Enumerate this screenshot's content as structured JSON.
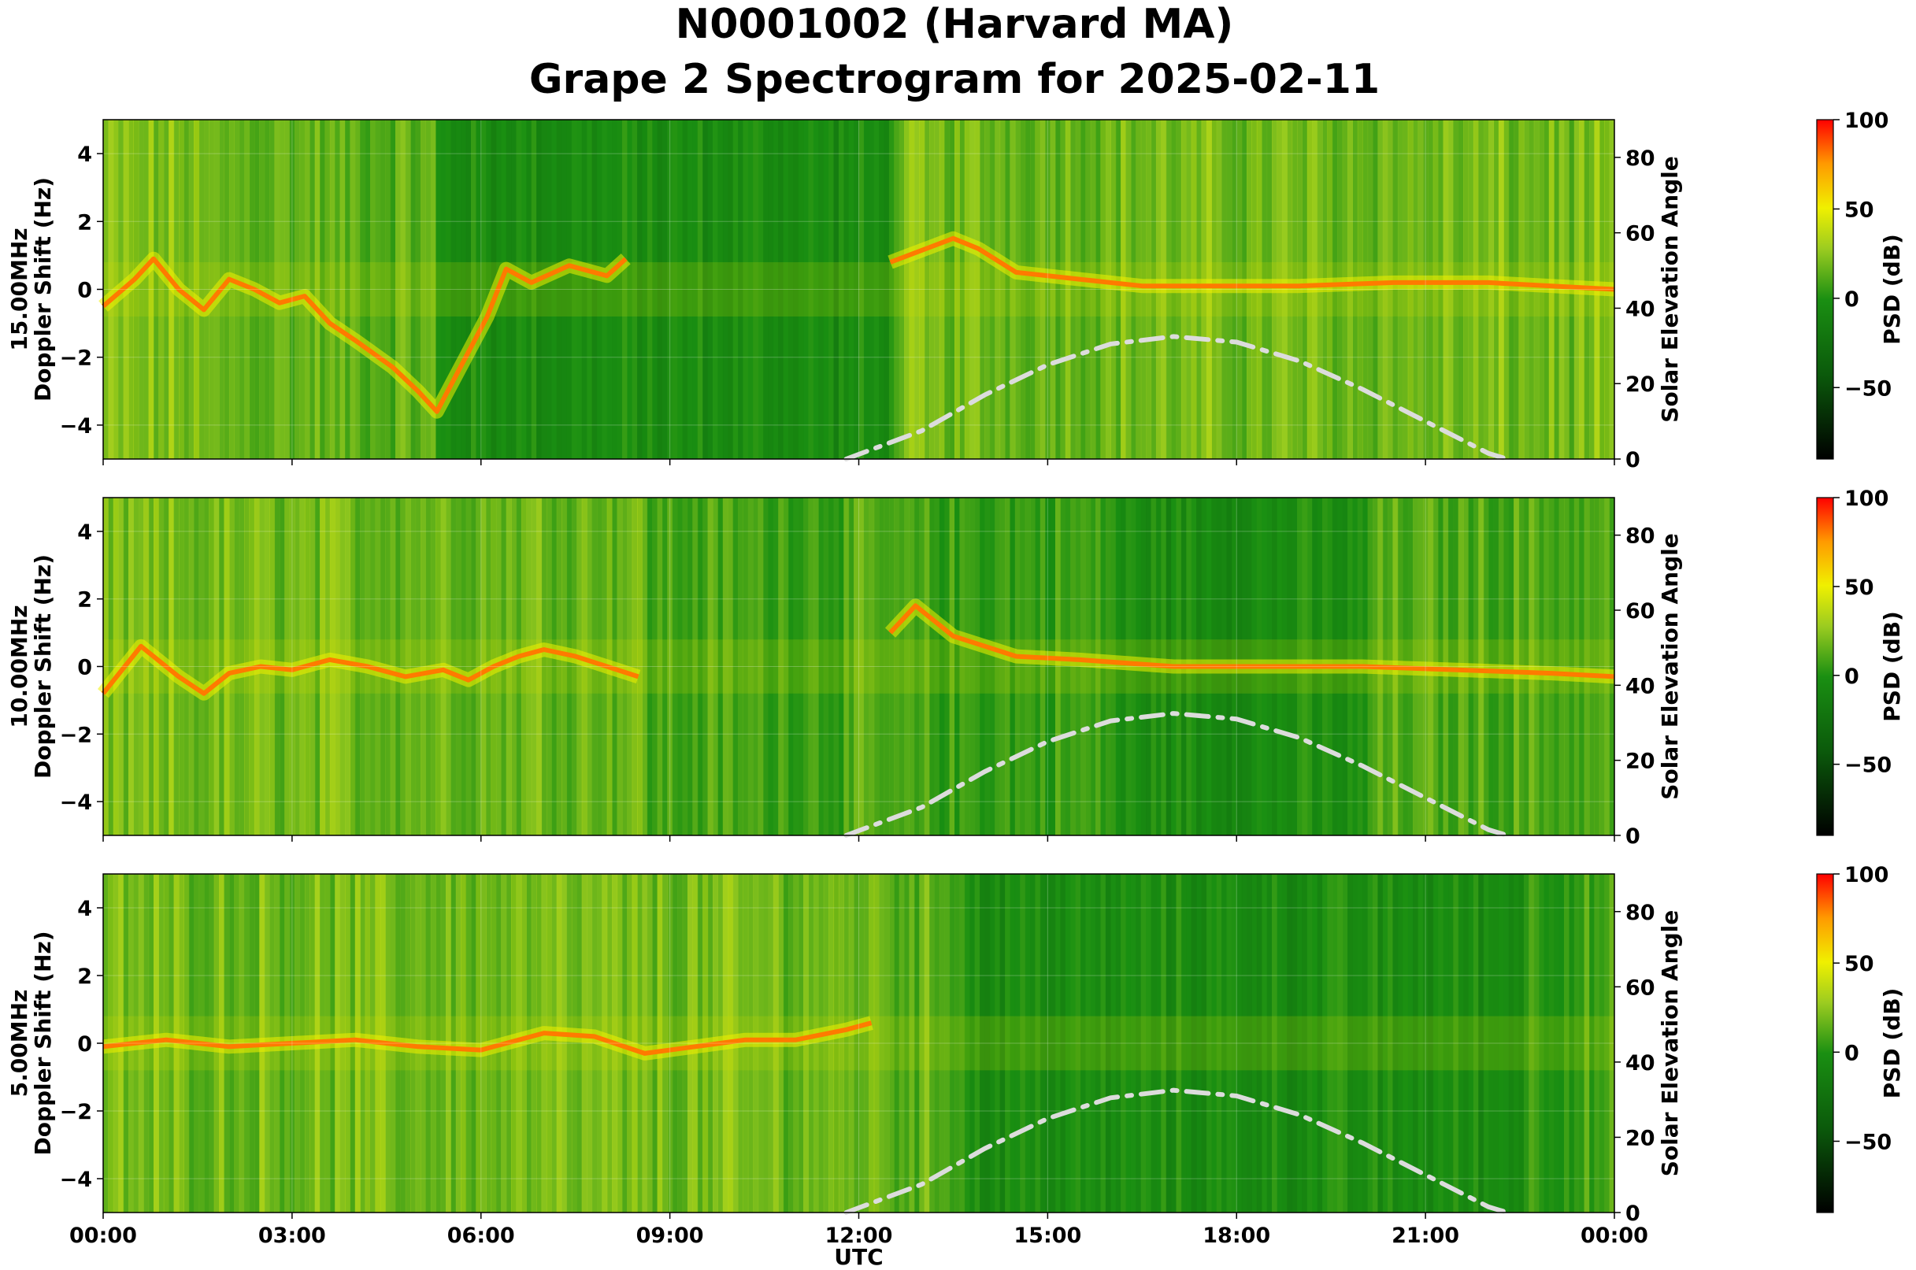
{
  "title_line1": "N0001002 (Harvard MA)",
  "title_line2": "Grape 2 Spectrogram for 2025-02-11",
  "chart_data": [
    {
      "type": "heatmap",
      "panel_label": "15.00MHz",
      "ylabel": "Doppler Shift (Hz)",
      "ylim": [
        -5,
        5
      ],
      "yticks": [
        -4,
        -2,
        0,
        2,
        4
      ],
      "y2label": "Solar Elevation Angle",
      "y2lim": [
        0,
        90
      ],
      "y2ticks": [
        0,
        20,
        40,
        60,
        80
      ],
      "xlim_hours": [
        0,
        24
      ],
      "colorbar": {
        "label": "PSD (dB)",
        "range": [
          -90,
          100
        ],
        "ticks": [
          100,
          50,
          0,
          -50
        ]
      },
      "doppler_trace": [
        [
          0,
          -0.5
        ],
        [
          0.5,
          0.3
        ],
        [
          0.8,
          0.9
        ],
        [
          1.2,
          0.0
        ],
        [
          1.6,
          -0.6
        ],
        [
          2.0,
          0.3
        ],
        [
          2.4,
          0.0
        ],
        [
          2.8,
          -0.4
        ],
        [
          3.2,
          -0.2
        ],
        [
          3.6,
          -1.0
        ],
        [
          4.0,
          -1.5
        ],
        [
          4.6,
          -2.3
        ],
        [
          5.0,
          -3.0
        ],
        [
          5.3,
          -3.6
        ],
        [
          5.7,
          -2.2
        ],
        [
          6.1,
          -0.8
        ],
        [
          6.4,
          0.6
        ],
        [
          6.8,
          0.2
        ],
        [
          7.4,
          0.7
        ],
        [
          8.0,
          0.4
        ],
        [
          8.3,
          0.9
        ]
      ],
      "noise_bands": [
        [
          0,
          1.5,
          0.6
        ],
        [
          1.5,
          3.5,
          0.5
        ],
        [
          3.5,
          5.2,
          0.45
        ],
        [
          5.2,
          12.5,
          0.1
        ],
        [
          12.5,
          24,
          0.55
        ]
      ],
      "day_trace": [
        [
          12.5,
          0.8
        ],
        [
          13.5,
          1.5
        ],
        [
          13.9,
          1.2
        ],
        [
          14.5,
          0.5
        ],
        [
          15.5,
          0.3
        ],
        [
          16.5,
          0.1
        ],
        [
          17.5,
          0.1
        ],
        [
          19,
          0.1
        ],
        [
          20.5,
          0.2
        ],
        [
          22,
          0.2
        ],
        [
          23,
          0.1
        ],
        [
          24,
          0.0
        ]
      ],
      "solar_elevation": [
        [
          11.8,
          0
        ],
        [
          13,
          7.5
        ],
        [
          14,
          17
        ],
        [
          15,
          25
        ],
        [
          16,
          30.5
        ],
        [
          17,
          32.5
        ],
        [
          18,
          31
        ],
        [
          19,
          26
        ],
        [
          20,
          18.5
        ],
        [
          21,
          10
        ],
        [
          22,
          1.5
        ],
        [
          22.3,
          0
        ]
      ]
    },
    {
      "type": "heatmap",
      "panel_label": "10.00MHz",
      "ylabel": "Doppler Shift (Hz)",
      "ylim": [
        -5,
        5
      ],
      "yticks": [
        -4,
        -2,
        0,
        2,
        4
      ],
      "y2label": "Solar Elevation Angle",
      "y2lim": [
        0,
        90
      ],
      "y2ticks": [
        0,
        20,
        40,
        60,
        80
      ],
      "xlim_hours": [
        0,
        24
      ],
      "colorbar": {
        "label": "PSD (dB)",
        "range": [
          -90,
          100
        ],
        "ticks": [
          100,
          50,
          0,
          -50
        ]
      },
      "doppler_trace": [
        [
          0,
          -0.8
        ],
        [
          0.6,
          0.6
        ],
        [
          1.2,
          -0.3
        ],
        [
          1.6,
          -0.8
        ],
        [
          2.0,
          -0.2
        ],
        [
          2.5,
          0.0
        ],
        [
          3.0,
          -0.1
        ],
        [
          3.6,
          0.2
        ],
        [
          4.2,
          0.0
        ],
        [
          4.8,
          -0.3
        ],
        [
          5.4,
          -0.1
        ],
        [
          5.8,
          -0.4
        ],
        [
          6.2,
          0.0
        ],
        [
          6.6,
          0.3
        ],
        [
          7.0,
          0.5
        ],
        [
          7.5,
          0.3
        ],
        [
          8.0,
          0.0
        ],
        [
          8.5,
          -0.3
        ]
      ],
      "noise_bands": [
        [
          0,
          8.6,
          0.55
        ],
        [
          8.6,
          12.5,
          0.35
        ],
        [
          12.5,
          16,
          0.3
        ],
        [
          16,
          20,
          0.1
        ],
        [
          20,
          24,
          0.4
        ]
      ],
      "day_trace": [
        [
          12.5,
          1.0
        ],
        [
          12.9,
          1.8
        ],
        [
          13.5,
          0.9
        ],
        [
          14.5,
          0.3
        ],
        [
          15.5,
          0.2
        ],
        [
          17,
          0.0
        ],
        [
          18.5,
          0.0
        ],
        [
          20,
          0.0
        ],
        [
          21.5,
          -0.1
        ],
        [
          23,
          -0.2
        ],
        [
          24,
          -0.3
        ]
      ],
      "solar_elevation": [
        [
          11.8,
          0
        ],
        [
          13,
          7.5
        ],
        [
          14,
          17
        ],
        [
          15,
          25
        ],
        [
          16,
          30.5
        ],
        [
          17,
          32.5
        ],
        [
          18,
          31
        ],
        [
          19,
          26
        ],
        [
          20,
          18.5
        ],
        [
          21,
          10
        ],
        [
          22,
          1.5
        ],
        [
          22.3,
          0
        ]
      ]
    },
    {
      "type": "heatmap",
      "panel_label": "5.00MHz",
      "ylabel": "Doppler Shift (Hz)",
      "ylim": [
        -5,
        5
      ],
      "yticks": [
        -4,
        -2,
        0,
        2,
        4
      ],
      "y2label": "Solar Elevation Angle",
      "y2lim": [
        0,
        90
      ],
      "y2ticks": [
        0,
        20,
        40,
        60,
        80
      ],
      "xlim_hours": [
        0,
        24
      ],
      "xticks": [
        "00:00",
        "03:00",
        "06:00",
        "09:00",
        "12:00",
        "15:00",
        "18:00",
        "21:00",
        "00:00"
      ],
      "xlabel": "UTC",
      "colorbar": {
        "label": "PSD (dB)",
        "range": [
          -90,
          100
        ],
        "ticks": [
          100,
          50,
          0,
          -50
        ]
      },
      "doppler_trace": [
        [
          0,
          -0.1
        ],
        [
          1,
          0.1
        ],
        [
          2,
          -0.1
        ],
        [
          3,
          0.0
        ],
        [
          4,
          0.1
        ],
        [
          5,
          -0.1
        ],
        [
          6,
          -0.2
        ],
        [
          7,
          0.3
        ],
        [
          7.8,
          0.2
        ],
        [
          8.6,
          -0.3
        ],
        [
          9.4,
          -0.1
        ],
        [
          10.2,
          0.1
        ],
        [
          11,
          0.1
        ],
        [
          11.8,
          0.4
        ],
        [
          12.2,
          0.6
        ]
      ],
      "noise_bands": [
        [
          0,
          12.5,
          0.55
        ],
        [
          12.5,
          13.6,
          0.45
        ],
        [
          13.6,
          22.5,
          0.1
        ],
        [
          22.5,
          24,
          0.3
        ]
      ],
      "day_trace": [],
      "solar_elevation": [
        [
          11.8,
          0
        ],
        [
          13,
          7.5
        ],
        [
          14,
          17
        ],
        [
          15,
          25
        ],
        [
          16,
          30.5
        ],
        [
          17,
          32.5
        ],
        [
          18,
          31
        ],
        [
          19,
          26
        ],
        [
          20,
          18.5
        ],
        [
          21,
          10
        ],
        [
          22,
          1.5
        ],
        [
          22.3,
          0
        ]
      ]
    }
  ]
}
